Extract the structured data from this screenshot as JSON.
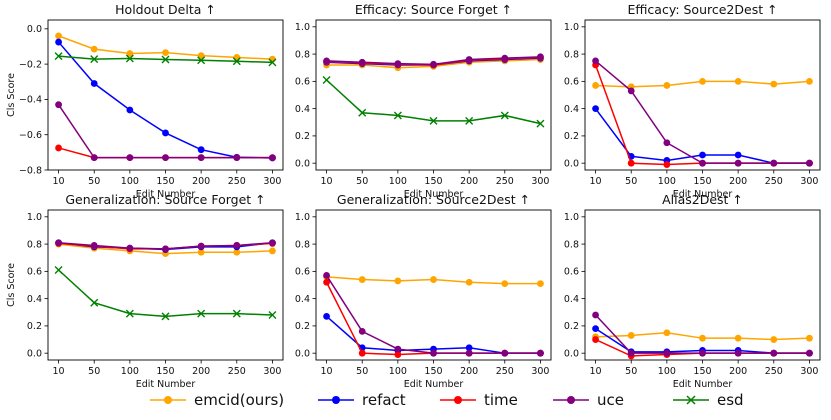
{
  "chart_data": [
    {
      "type": "line",
      "title": "Holdout Delta ↑",
      "xlabel": "Edit Number",
      "ylabel": "Cls Score",
      "x": [
        10,
        50,
        100,
        150,
        200,
        250,
        300
      ],
      "ylim": [
        -0.8,
        0.05
      ],
      "yticks": [
        -0.8,
        -0.6,
        -0.4,
        -0.2,
        0.0
      ],
      "ytick_labels": [
        "−0.8",
        "−0.6",
        "−0.4",
        "−0.2",
        "0.0"
      ],
      "series": [
        {
          "name": "emcid(ours)",
          "values": [
            -0.04,
            -0.115,
            -0.14,
            -0.135,
            -0.152,
            -0.162,
            -0.172
          ]
        },
        {
          "name": "refact",
          "values": [
            -0.075,
            -0.31,
            -0.46,
            -0.59,
            -0.685,
            -0.728,
            -0.732
          ]
        },
        {
          "name": "time",
          "values": [
            -0.675,
            -0.73,
            -0.73,
            -0.73,
            -0.73,
            -0.73,
            -0.73
          ]
        },
        {
          "name": "uce",
          "values": [
            -0.43,
            -0.73,
            -0.73,
            -0.73,
            -0.73,
            -0.73,
            -0.73
          ]
        },
        {
          "name": "esd",
          "values": [
            -0.155,
            -0.172,
            -0.168,
            -0.174,
            -0.178,
            -0.184,
            -0.19
          ]
        }
      ]
    },
    {
      "type": "line",
      "title": "Efficacy: Source Forget ↑",
      "xlabel": "Edit Number",
      "ylabel": "",
      "x": [
        10,
        50,
        100,
        150,
        200,
        250,
        300
      ],
      "ylim": [
        -0.05,
        1.05
      ],
      "yticks": [
        0.0,
        0.2,
        0.4,
        0.6,
        0.8,
        1.0
      ],
      "ytick_labels": [
        "0.0",
        "0.2",
        "0.4",
        "0.6",
        "0.8",
        "1.0"
      ],
      "series": [
        {
          "name": "emcid(ours)",
          "values": [
            0.72,
            0.72,
            0.7,
            0.71,
            0.74,
            0.75,
            0.76
          ]
        },
        {
          "name": "refact",
          "values": [
            0.74,
            0.73,
            0.72,
            0.72,
            0.75,
            0.76,
            0.77
          ]
        },
        {
          "name": "time",
          "values": [
            0.745,
            0.735,
            0.725,
            0.72,
            0.755,
            0.765,
            0.775
          ]
        },
        {
          "name": "uce",
          "values": [
            0.75,
            0.74,
            0.73,
            0.725,
            0.76,
            0.77,
            0.78
          ]
        },
        {
          "name": "esd",
          "values": [
            0.61,
            0.37,
            0.35,
            0.31,
            0.31,
            0.35,
            0.29
          ]
        }
      ]
    },
    {
      "type": "line",
      "title": "Efficacy: Source2Dest ↑",
      "xlabel": "Edit Number",
      "ylabel": "",
      "x": [
        10,
        50,
        100,
        150,
        200,
        250,
        300
      ],
      "ylim": [
        -0.05,
        1.05
      ],
      "yticks": [
        0.0,
        0.2,
        0.4,
        0.6,
        0.8,
        1.0
      ],
      "ytick_labels": [
        "0.0",
        "0.2",
        "0.4",
        "0.6",
        "0.8",
        "1.0"
      ],
      "series": [
        {
          "name": "emcid(ours)",
          "values": [
            0.57,
            0.56,
            0.57,
            0.6,
            0.6,
            0.58,
            0.6
          ]
        },
        {
          "name": "refact",
          "values": [
            0.4,
            0.05,
            0.02,
            0.06,
            0.06,
            0.0,
            0.0
          ]
        },
        {
          "name": "time",
          "values": [
            0.72,
            0.0,
            -0.01,
            0.0,
            0.0,
            0.0,
            0.0
          ]
        },
        {
          "name": "uce",
          "values": [
            0.75,
            0.53,
            0.15,
            0.0,
            0.0,
            0.0,
            0.0
          ]
        }
      ]
    },
    {
      "type": "line",
      "title": "Generalization: Source Forget ↑",
      "xlabel": "Edit Number",
      "ylabel": "Cls Score",
      "x": [
        10,
        50,
        100,
        150,
        200,
        250,
        300
      ],
      "ylim": [
        -0.05,
        1.05
      ],
      "yticks": [
        0.0,
        0.2,
        0.4,
        0.6,
        0.8,
        1.0
      ],
      "ytick_labels": [
        "0.0",
        "0.2",
        "0.4",
        "0.6",
        "0.8",
        "1.0"
      ],
      "series": [
        {
          "name": "emcid(ours)",
          "values": [
            0.8,
            0.77,
            0.75,
            0.73,
            0.74,
            0.74,
            0.75
          ]
        },
        {
          "name": "refact",
          "values": [
            0.81,
            0.78,
            0.77,
            0.76,
            0.78,
            0.78,
            0.81
          ]
        },
        {
          "name": "time",
          "values": [
            0.805,
            0.785,
            0.765,
            0.765,
            0.785,
            0.79,
            0.805
          ]
        },
        {
          "name": "uce",
          "values": [
            0.81,
            0.79,
            0.77,
            0.765,
            0.785,
            0.79,
            0.81
          ]
        },
        {
          "name": "esd",
          "values": [
            0.61,
            0.37,
            0.29,
            0.27,
            0.29,
            0.29,
            0.28
          ]
        }
      ]
    },
    {
      "type": "line",
      "title": "Generalization: Source2Dest ↑",
      "xlabel": "Edit Number",
      "ylabel": "",
      "x": [
        10,
        50,
        100,
        150,
        200,
        250,
        300
      ],
      "ylim": [
        -0.05,
        1.05
      ],
      "yticks": [
        0.0,
        0.2,
        0.4,
        0.6,
        0.8,
        1.0
      ],
      "ytick_labels": [
        "0.0",
        "0.2",
        "0.4",
        "0.6",
        "0.8",
        "1.0"
      ],
      "series": [
        {
          "name": "emcid(ours)",
          "values": [
            0.56,
            0.54,
            0.53,
            0.54,
            0.52,
            0.51,
            0.51
          ]
        },
        {
          "name": "refact",
          "values": [
            0.27,
            0.04,
            0.02,
            0.03,
            0.04,
            0.0,
            0.0
          ]
        },
        {
          "name": "time",
          "values": [
            0.52,
            0.0,
            -0.01,
            0.0,
            0.0,
            0.0,
            0.0
          ]
        },
        {
          "name": "uce",
          "values": [
            0.57,
            0.16,
            0.03,
            0.0,
            0.0,
            0.0,
            0.0
          ]
        }
      ]
    },
    {
      "type": "line",
      "title": "Alias2Dest ↑",
      "xlabel": "Edit Number",
      "ylabel": "",
      "x": [
        10,
        50,
        100,
        150,
        200,
        250,
        300
      ],
      "ylim": [
        -0.05,
        1.05
      ],
      "yticks": [
        0.0,
        0.2,
        0.4,
        0.6,
        0.8,
        1.0
      ],
      "ytick_labels": [
        "0.0",
        "0.2",
        "0.4",
        "0.6",
        "0.8",
        "1.0"
      ],
      "series": [
        {
          "name": "emcid(ours)",
          "values": [
            0.12,
            0.13,
            0.15,
            0.11,
            0.11,
            0.1,
            0.11
          ]
        },
        {
          "name": "refact",
          "values": [
            0.18,
            0.01,
            0.01,
            0.02,
            0.02,
            0.0,
            0.0
          ]
        },
        {
          "name": "time",
          "values": [
            0.1,
            -0.02,
            -0.01,
            0.0,
            0.0,
            0.0,
            0.0
          ]
        },
        {
          "name": "uce",
          "values": [
            0.28,
            0.0,
            0.0,
            0.0,
            0.0,
            0.0,
            0.0
          ]
        }
      ]
    }
  ],
  "legend": [
    {
      "name": "emcid(ours)",
      "color": "#ffa500",
      "marker": "circle"
    },
    {
      "name": "refact",
      "color": "#0000ff",
      "marker": "circle"
    },
    {
      "name": "time",
      "color": "#ff0000",
      "marker": "circle"
    },
    {
      "name": "uce",
      "color": "#800080",
      "marker": "circle"
    },
    {
      "name": "esd",
      "color": "#008000",
      "marker": "x"
    }
  ]
}
